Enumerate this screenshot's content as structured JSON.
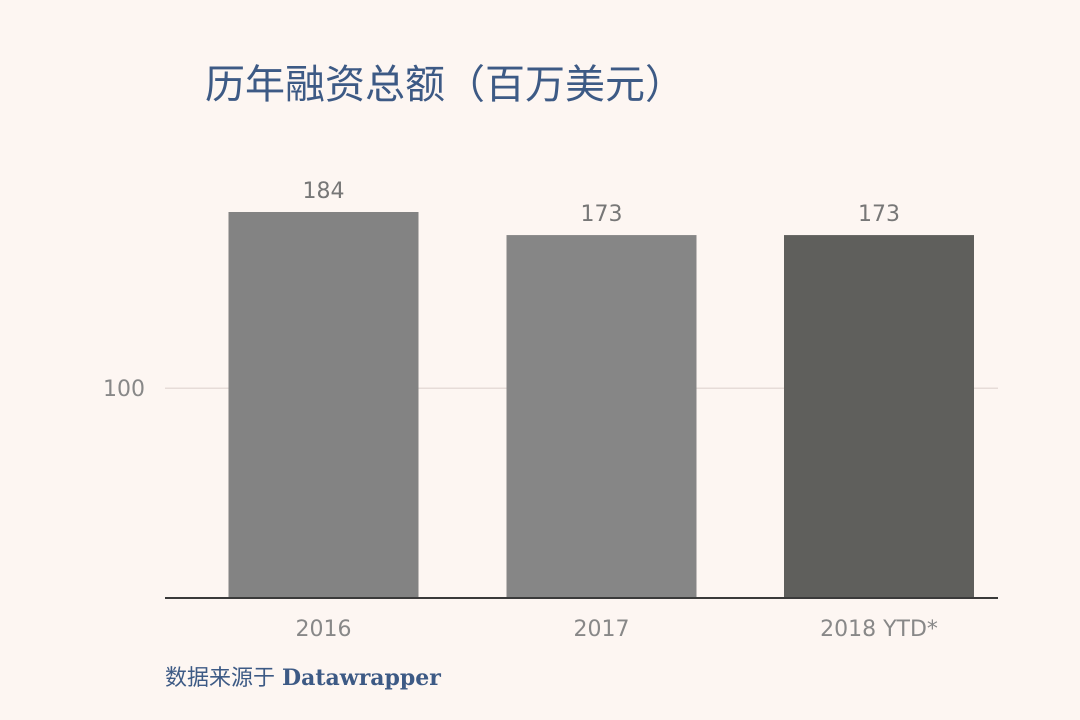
{
  "chart_data": {
    "type": "bar",
    "title": "历年融资总额（百万美元）",
    "categories": [
      "2016",
      "2017",
      "2018 YTD*"
    ],
    "values": [
      184,
      173,
      173
    ],
    "ylim": [
      0,
      184
    ],
    "y_ticks": [
      100
    ],
    "y_tick_labels": [
      "100"
    ],
    "grid": true,
    "xlabel": "",
    "ylabel": "",
    "bar_colors": [
      "#838383",
      "#868686",
      "#5f5f5c"
    ],
    "gridline_color": "#e6dcd8",
    "axis_color": "#3a3a3a"
  },
  "source": {
    "prefix": "数据来源于 ",
    "brand": "Datawrapper"
  }
}
